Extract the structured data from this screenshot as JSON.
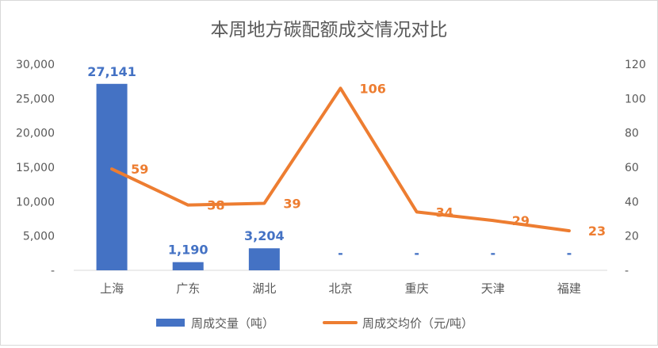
{
  "chart_data": {
    "type": "bar+line",
    "title": "本周地方碳配额成交情况对比",
    "categories": [
      "上海",
      "广东",
      "湖北",
      "北京",
      "重庆",
      "天津",
      "福建"
    ],
    "series": [
      {
        "name": "周成交量（吨）",
        "type": "bar",
        "axis": "left",
        "values": [
          27141,
          1190,
          3204,
          null,
          null,
          null,
          null
        ],
        "labels": [
          "27,141",
          "1,190",
          "3,204",
          "-",
          "-",
          "-",
          "-"
        ],
        "color": "#4472c4"
      },
      {
        "name": "周成交均价（元/吨）",
        "type": "line",
        "axis": "right",
        "values": [
          59,
          38,
          39,
          106,
          34,
          29,
          23
        ],
        "labels": [
          "59",
          "38",
          "39",
          "106",
          "34",
          "29",
          "23"
        ],
        "color": "#ed7d31"
      }
    ],
    "y_left": {
      "min": 0,
      "max": 30000,
      "ticks": [
        "-",
        "5,000",
        "10,000",
        "15,000",
        "20,000",
        "25,000",
        "30,000"
      ]
    },
    "y_right": {
      "min": 0,
      "max": 120,
      "ticks": [
        "-",
        "20",
        "40",
        "60",
        "80",
        "100",
        "120"
      ]
    },
    "grid": false,
    "legend_position": "bottom"
  }
}
